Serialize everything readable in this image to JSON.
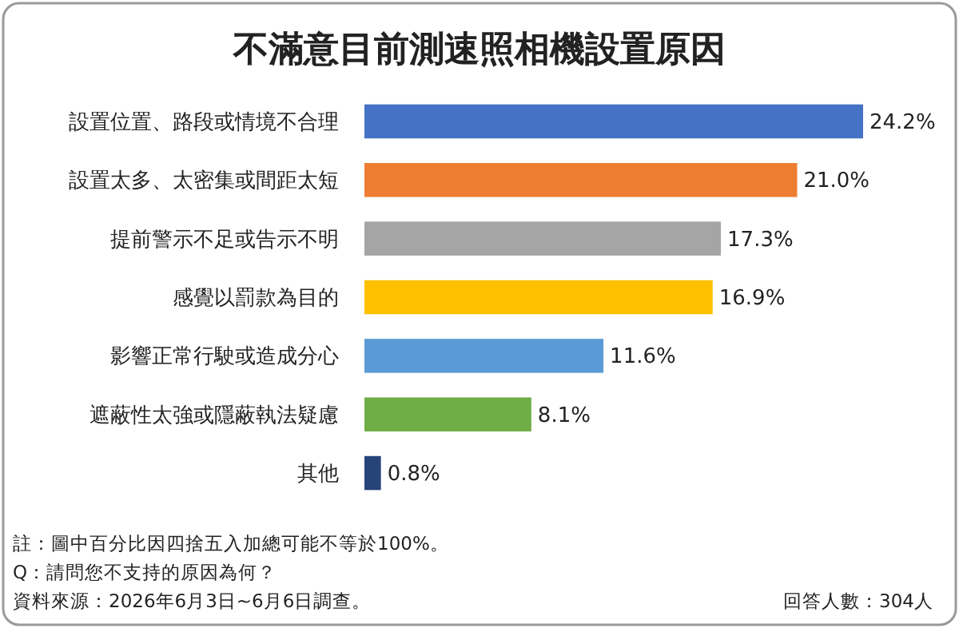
{
  "chart_data": {
    "type": "bar",
    "orientation": "horizontal",
    "title": "不滿意目前測速照相機設置原因",
    "categories": [
      "設置位置、路段或情境不合理",
      "設置太多、太密集或間距太短",
      "提前警示不足或告示不明",
      "感覺以罰款為目的",
      "影響正常行駛或造成分心",
      "遮蔽性太強或隱蔽執法疑慮",
      "其他"
    ],
    "values": [
      24.2,
      21.0,
      17.3,
      16.9,
      11.6,
      8.1,
      0.8
    ],
    "value_labels": [
      "24.2%",
      "21.0%",
      "17.3%",
      "16.9%",
      "11.6%",
      "8.1%",
      "0.8%"
    ],
    "colors": [
      "#4472c4",
      "#ed7d31",
      "#a5a5a5",
      "#ffc000",
      "#5b9bd5",
      "#70ad47",
      "#264478"
    ],
    "annotations": [
      "註：圖中百分比因四捨五入加總可能不等於100%。",
      "Q：請問您不支持的原因為何？",
      "資料來源：2026年6月3日~6月6日調查。",
      "回答人數：304人"
    ]
  }
}
